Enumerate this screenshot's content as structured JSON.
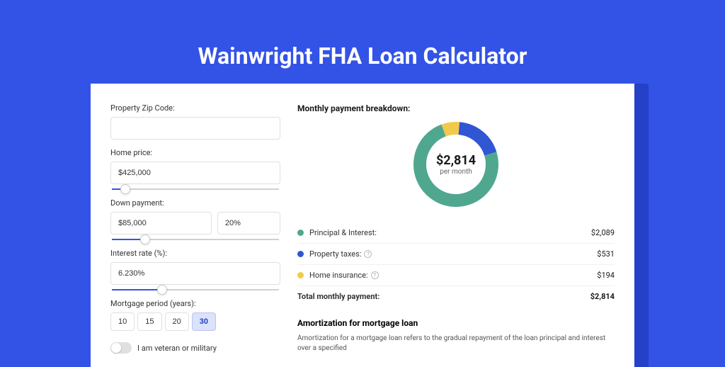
{
  "page": {
    "title": "Wainwright FHA Loan Calculator",
    "background_color": "#3353e6",
    "card_shadow_color": "#2541c7",
    "card_background": "#ffffff"
  },
  "form": {
    "zip": {
      "label": "Property Zip Code:",
      "value": ""
    },
    "home_price": {
      "label": "Home price:",
      "value": "$425,000",
      "slider_percent": 8
    },
    "down_payment": {
      "label": "Down payment:",
      "value": "$85,000",
      "percent": "20%",
      "slider_percent": 20
    },
    "interest_rate": {
      "label": "Interest rate (%):",
      "value": "6.230%",
      "slider_percent": 30
    },
    "mortgage_period": {
      "label": "Mortgage period (years):",
      "options": [
        "10",
        "15",
        "20",
        "30"
      ],
      "selected": "30"
    },
    "veteran": {
      "label": "I am veteran or military",
      "checked": false
    }
  },
  "breakdown": {
    "title": "Monthly payment breakdown:",
    "donut": {
      "center_amount": "$2,814",
      "center_sub": "per month",
      "size": 120,
      "stroke_width": 18,
      "slices": [
        {
          "color": "#50a790",
          "percent": 74.2,
          "key": "principal_interest"
        },
        {
          "color": "#3056d3",
          "percent": 18.9,
          "key": "property_taxes"
        },
        {
          "color": "#f2c94c",
          "percent": 6.9,
          "key": "home_insurance"
        }
      ]
    },
    "rows": [
      {
        "dot_color": "#50a790",
        "label": "Principal & Interest:",
        "info": false,
        "value": "$2,089"
      },
      {
        "dot_color": "#3056d3",
        "label": "Property taxes:",
        "info": true,
        "value": "$531"
      },
      {
        "dot_color": "#f2c94c",
        "label": "Home insurance:",
        "info": true,
        "value": "$194"
      }
    ],
    "total": {
      "label": "Total monthly payment:",
      "value": "$2,814"
    }
  },
  "amortization": {
    "title": "Amortization for mortgage loan",
    "text": "Amortization for a mortgage loan refers to the gradual repayment of the loan principal and interest over a specified"
  }
}
